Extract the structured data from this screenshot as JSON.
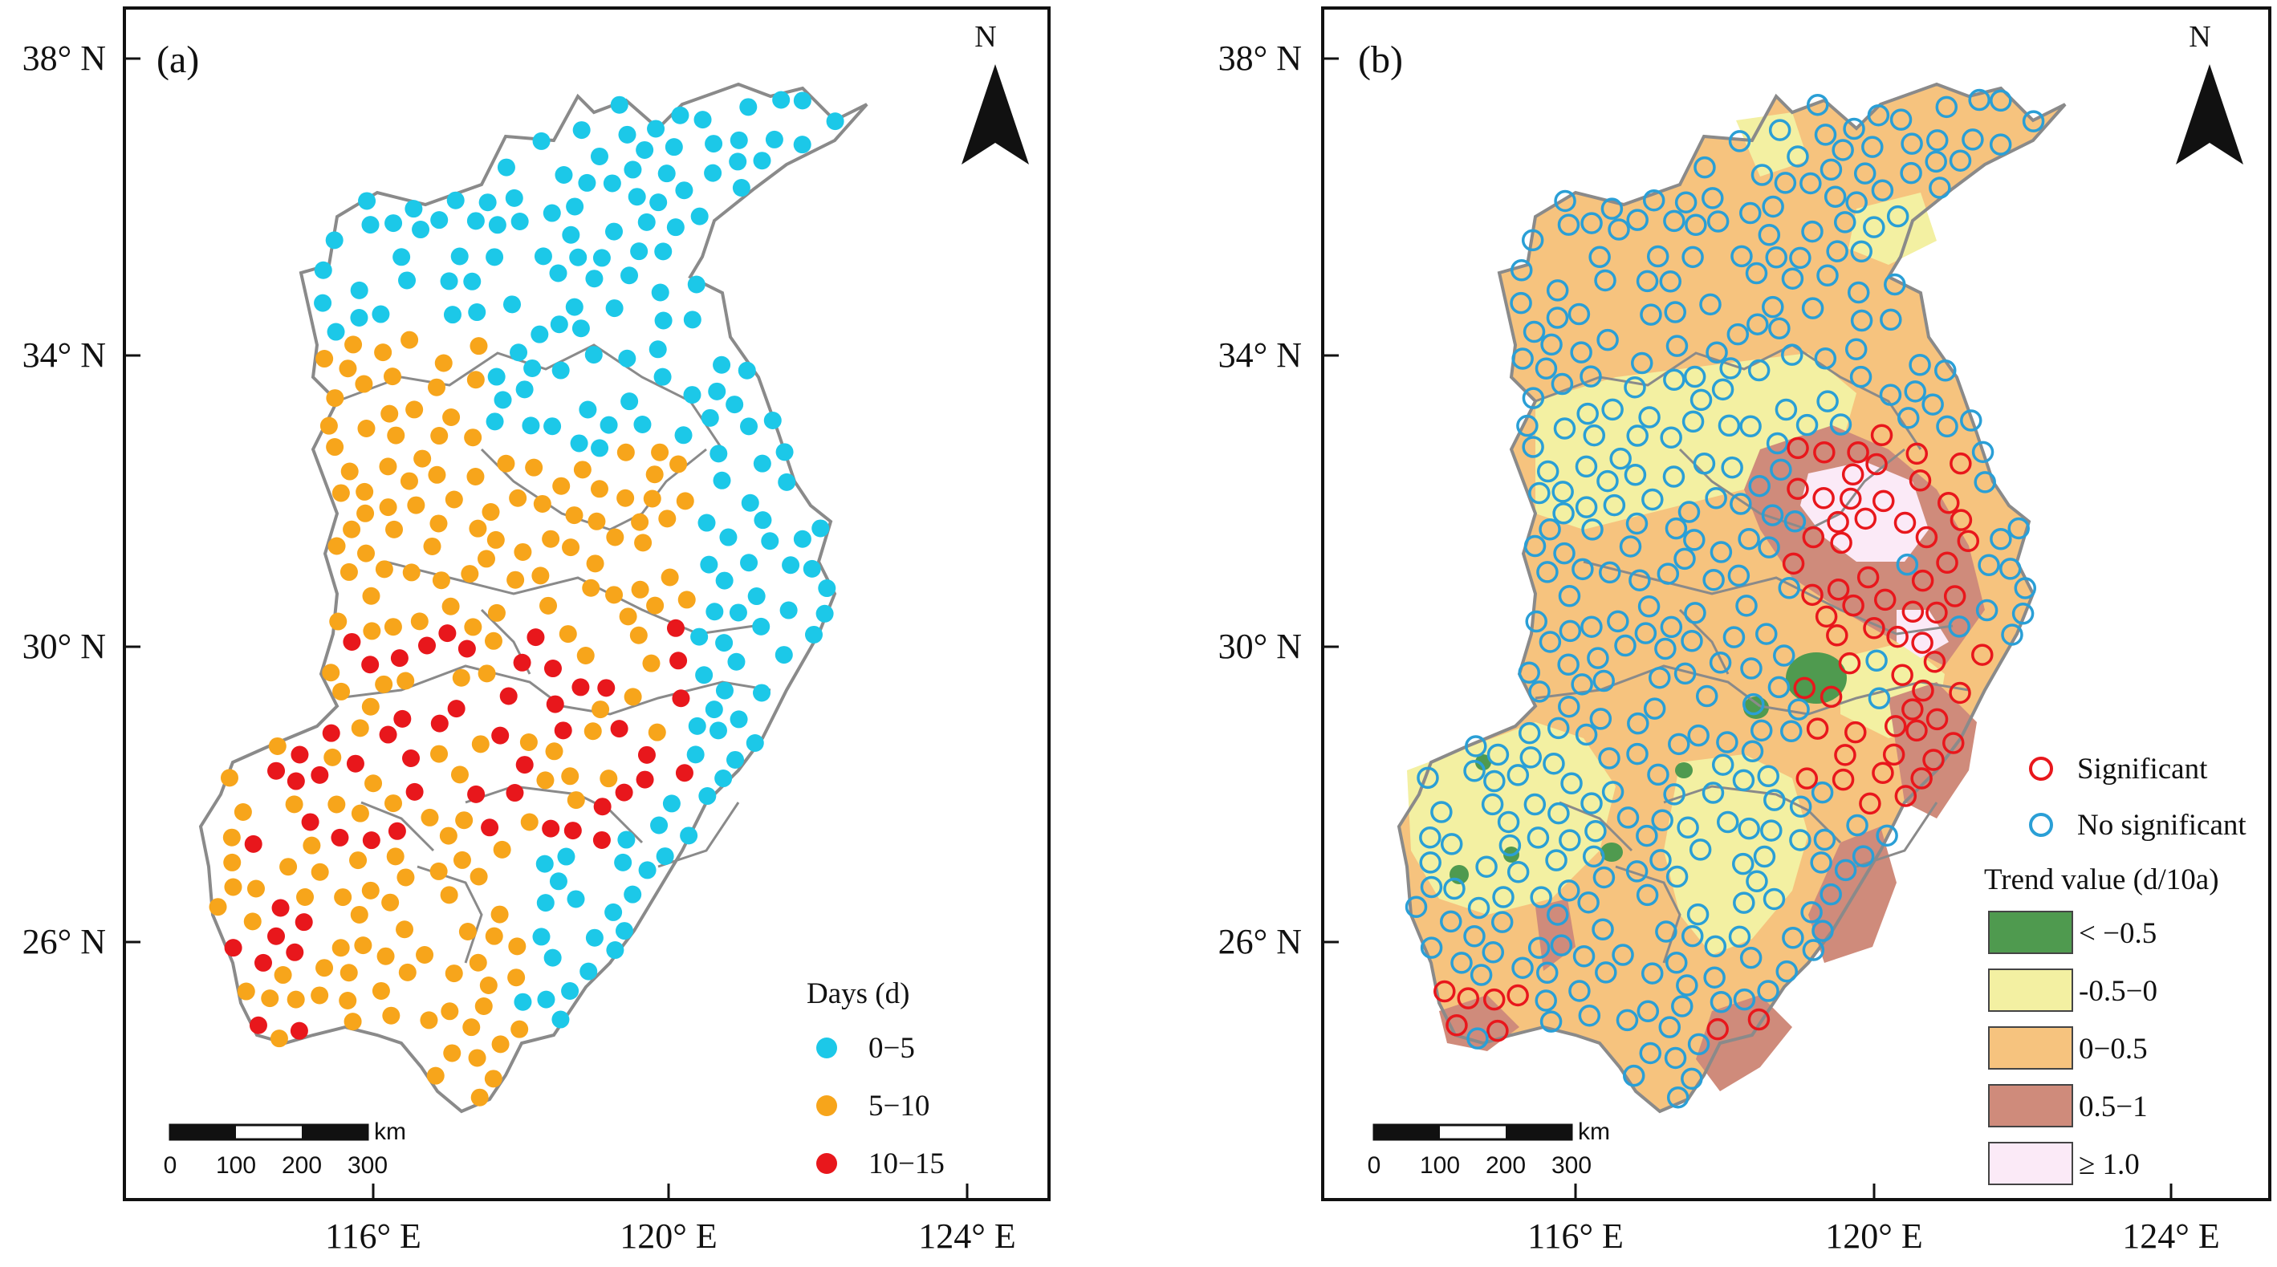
{
  "panels": [
    {
      "label": "(a)",
      "north": "N",
      "legend_title": "Days (d)",
      "legend_items": [
        {
          "label": "0−5",
          "color": "#1cc8e8"
        },
        {
          "label": "5−10",
          "color": "#f7a51b"
        },
        {
          "label": "10−15",
          "color": "#e8171c"
        }
      ],
      "scale": {
        "unit": "km",
        "ticks": [
          "0",
          "100",
          "200",
          "300"
        ]
      }
    },
    {
      "label": "(b)",
      "north": "N",
      "legend_markers": [
        {
          "label": "Significant",
          "color": "#e8171c"
        },
        {
          "label": "No significant",
          "color": "#2a9fd6"
        }
      ],
      "trend_title": "Trend value (d/10a)",
      "trend_classes": [
        {
          "label": "< −0.5",
          "color": "#4f9a4f"
        },
        {
          "label": "-0.5−0",
          "color": "#f3f0a2"
        },
        {
          "label": "0−0.5",
          "color": "#f6c37e"
        },
        {
          "label": "0.5−1",
          "color": "#cf8b7b"
        },
        {
          "label": "≥ 1.0",
          "color": "#fbeaf7"
        }
      ],
      "scale": {
        "unit": "km",
        "ticks": [
          "0",
          "100",
          "200",
          "300"
        ]
      }
    }
  ],
  "axes": {
    "y_ticks": [
      "38° N",
      "34° N",
      "30° N",
      "26° N"
    ],
    "x_ticks": [
      "116° E",
      "120° E",
      "124° E"
    ]
  },
  "colors": {
    "boundary": "#8a8a8a",
    "frame": "#111111"
  }
}
